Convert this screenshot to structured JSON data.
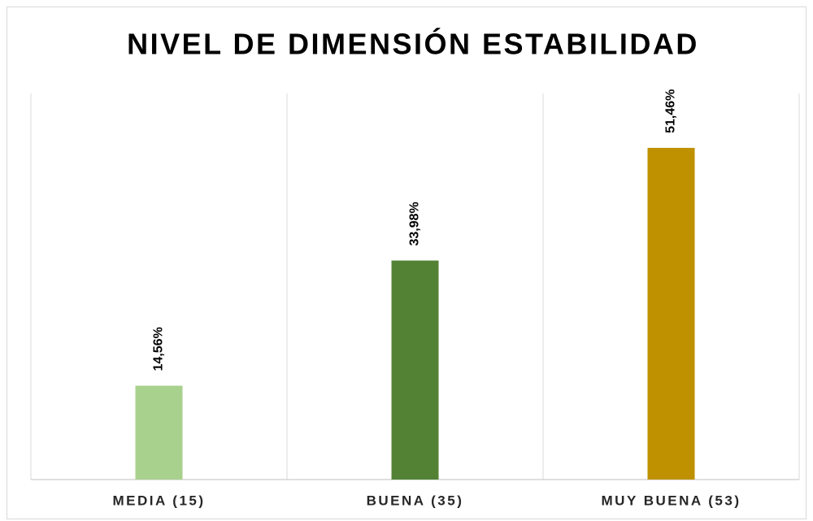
{
  "chart_data": {
    "type": "bar",
    "title": "NIVEL DE DIMENSIÓN ESTABILIDAD",
    "categories": [
      "MEDIA (15)",
      "BUENA (35)",
      "MUY BUENA (53)"
    ],
    "series": [
      {
        "colors": [
          "#a9d18e",
          "#548235",
          "#bf9000"
        ],
        "values": [
          14.56,
          33.98,
          51.46
        ],
        "value_labels": [
          "14,56%",
          "33,98%",
          "51,46%"
        ]
      }
    ]
  }
}
